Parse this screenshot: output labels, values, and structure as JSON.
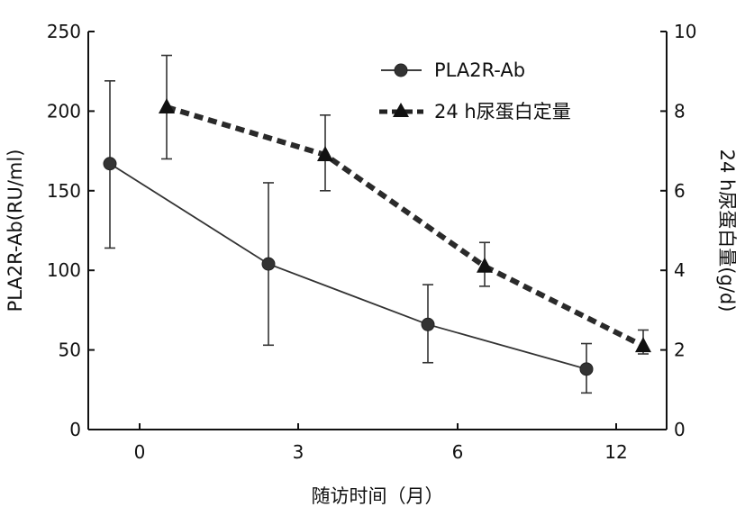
{
  "chart_data": {
    "type": "line",
    "title": "",
    "xlabel": "随访时间（月）",
    "ylabel_left": "PLA2R-Ab(RU/ml)",
    "ylabel_right": "24 h尿蛋白量(g/d)",
    "x_ticks": [
      "0",
      "3",
      "6",
      "12"
    ],
    "y_left_ticks": [
      "0",
      "50",
      "100",
      "150",
      "200",
      "250"
    ],
    "y_right_ticks": [
      "0",
      "2",
      "4",
      "6",
      "8",
      "10"
    ],
    "ylim_left": [
      0,
      250
    ],
    "ylim_right": [
      0,
      10
    ],
    "legend_position": "top-right",
    "grid": false,
    "series": [
      {
        "name": "PLA2R-Ab",
        "axis": "left",
        "marker": "circle",
        "line_style": "solid",
        "x": [
          "0",
          "3",
          "6",
          "12"
        ],
        "values": [
          167,
          104,
          66,
          38
        ],
        "error_low": [
          114,
          53,
          42,
          23
        ],
        "error_high": [
          219,
          155,
          91,
          54
        ]
      },
      {
        "name": "24 h尿蛋白定量",
        "axis": "right",
        "marker": "triangle",
        "line_style": "dashed",
        "x": [
          "0",
          "3",
          "6",
          "12"
        ],
        "values": [
          8.1,
          6.9,
          4.1,
          2.1
        ],
        "error_low": [
          6.8,
          6.0,
          3.6,
          1.9
        ],
        "error_high": [
          9.4,
          7.9,
          4.7,
          2.5
        ]
      }
    ]
  }
}
